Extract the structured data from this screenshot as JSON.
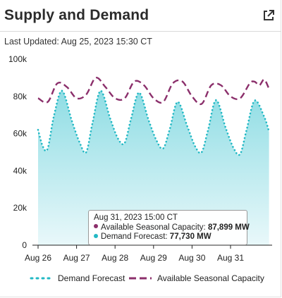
{
  "header": {
    "title": "Supply and Demand",
    "expand_icon": "external-link-icon"
  },
  "last_updated": "Last Updated: Aug 25, 2023 15:30 CT",
  "colors": {
    "demand": "#22b8c4",
    "demand_fill_top": "#8fdde4",
    "demand_fill_bottom": "#e9f8fa",
    "capacity": "#8b2f6b"
  },
  "tooltip": {
    "date": "Aug 31, 2023 15:00 CT",
    "capacity_label": "Available Seasonal Capacity: ",
    "capacity_value": "87,899 MW",
    "demand_label": "Demand Forecast: ",
    "demand_value": "77,730 MW"
  },
  "legend": {
    "demand": "Demand Forecast",
    "capacity": "Available Seasonal Capacity"
  },
  "chart_data": {
    "type": "area",
    "x_ticks": [
      "Aug 26",
      "Aug 27",
      "Aug 28",
      "Aug 29",
      "Aug 30",
      "Aug 31"
    ],
    "y_ticks": [
      "0",
      "20k",
      "40k",
      "60k",
      "80k",
      "100k"
    ],
    "ylim": [
      0,
      100000
    ],
    "grid": false,
    "legend_position": "bottom",
    "series": [
      {
        "name": "Demand Forecast",
        "style": "dotted-area",
        "points": [
          {
            "x": "Aug 26 00:00",
            "y": 62000
          },
          {
            "x": "Aug 26 03:00",
            "y": 53000
          },
          {
            "x": "Aug 26 06:00",
            "y": 52000
          },
          {
            "x": "Aug 26 10:00",
            "y": 70000
          },
          {
            "x": "Aug 26 15:00",
            "y": 83000
          },
          {
            "x": "Aug 26 21:00",
            "y": 67000
          },
          {
            "x": "Aug 27 02:00",
            "y": 55000
          },
          {
            "x": "Aug 27 06:00",
            "y": 50000
          },
          {
            "x": "Aug 27 10:00",
            "y": 66000
          },
          {
            "x": "Aug 27 15:00",
            "y": 83000
          },
          {
            "x": "Aug 27 21:00",
            "y": 68000
          },
          {
            "x": "Aug 28 02:00",
            "y": 57000
          },
          {
            "x": "Aug 28 06:00",
            "y": 55000
          },
          {
            "x": "Aug 28 10:00",
            "y": 68000
          },
          {
            "x": "Aug 28 15:00",
            "y": 82000
          },
          {
            "x": "Aug 28 21:00",
            "y": 67000
          },
          {
            "x": "Aug 29 02:00",
            "y": 56000
          },
          {
            "x": "Aug 29 06:00",
            "y": 52000
          },
          {
            "x": "Aug 29 10:00",
            "y": 62000
          },
          {
            "x": "Aug 29 15:00",
            "y": 77000
          },
          {
            "x": "Aug 29 21:00",
            "y": 64000
          },
          {
            "x": "Aug 30 02:00",
            "y": 53000
          },
          {
            "x": "Aug 30 06:00",
            "y": 50000
          },
          {
            "x": "Aug 30 10:00",
            "y": 62000
          },
          {
            "x": "Aug 30 15:00",
            "y": 78000
          },
          {
            "x": "Aug 30 21:00",
            "y": 63000
          },
          {
            "x": "Aug 31 02:00",
            "y": 52000
          },
          {
            "x": "Aug 31 06:00",
            "y": 49000
          },
          {
            "x": "Aug 31 10:00",
            "y": 62000
          },
          {
            "x": "Aug 31 15:00",
            "y": 77730
          },
          {
            "x": "Aug 31 21:00",
            "y": 69000
          },
          {
            "x": "Sep 01 00:00",
            "y": 61000
          }
        ]
      },
      {
        "name": "Available Seasonal Capacity",
        "style": "dashed-line",
        "points": [
          {
            "x": "Aug 26 00:00",
            "y": 79000
          },
          {
            "x": "Aug 26 06:00",
            "y": 77000
          },
          {
            "x": "Aug 26 12:00",
            "y": 87000
          },
          {
            "x": "Aug 26 18:00",
            "y": 85000
          },
          {
            "x": "Aug 27 00:00",
            "y": 79000
          },
          {
            "x": "Aug 27 06:00",
            "y": 81000
          },
          {
            "x": "Aug 27 12:00",
            "y": 90000
          },
          {
            "x": "Aug 27 18:00",
            "y": 85000
          },
          {
            "x": "Aug 28 00:00",
            "y": 79000
          },
          {
            "x": "Aug 28 06:00",
            "y": 79000
          },
          {
            "x": "Aug 28 12:00",
            "y": 88000
          },
          {
            "x": "Aug 28 18:00",
            "y": 86000
          },
          {
            "x": "Aug 29 00:00",
            "y": 79000
          },
          {
            "x": "Aug 29 06:00",
            "y": 77000
          },
          {
            "x": "Aug 29 12:00",
            "y": 87000
          },
          {
            "x": "Aug 29 18:00",
            "y": 88000
          },
          {
            "x": "Aug 30 00:00",
            "y": 80000
          },
          {
            "x": "Aug 30 06:00",
            "y": 76000
          },
          {
            "x": "Aug 30 12:00",
            "y": 86000
          },
          {
            "x": "Aug 30 18:00",
            "y": 86000
          },
          {
            "x": "Aug 31 00:00",
            "y": 80000
          },
          {
            "x": "Aug 31 06:00",
            "y": 79000
          },
          {
            "x": "Aug 31 12:00",
            "y": 87000
          },
          {
            "x": "Aug 31 15:00",
            "y": 87899
          },
          {
            "x": "Aug 31 18:00",
            "y": 86000
          },
          {
            "x": "Aug 31 21:00",
            "y": 89000
          },
          {
            "x": "Sep 01 00:00",
            "y": 84000
          }
        ]
      }
    ]
  }
}
